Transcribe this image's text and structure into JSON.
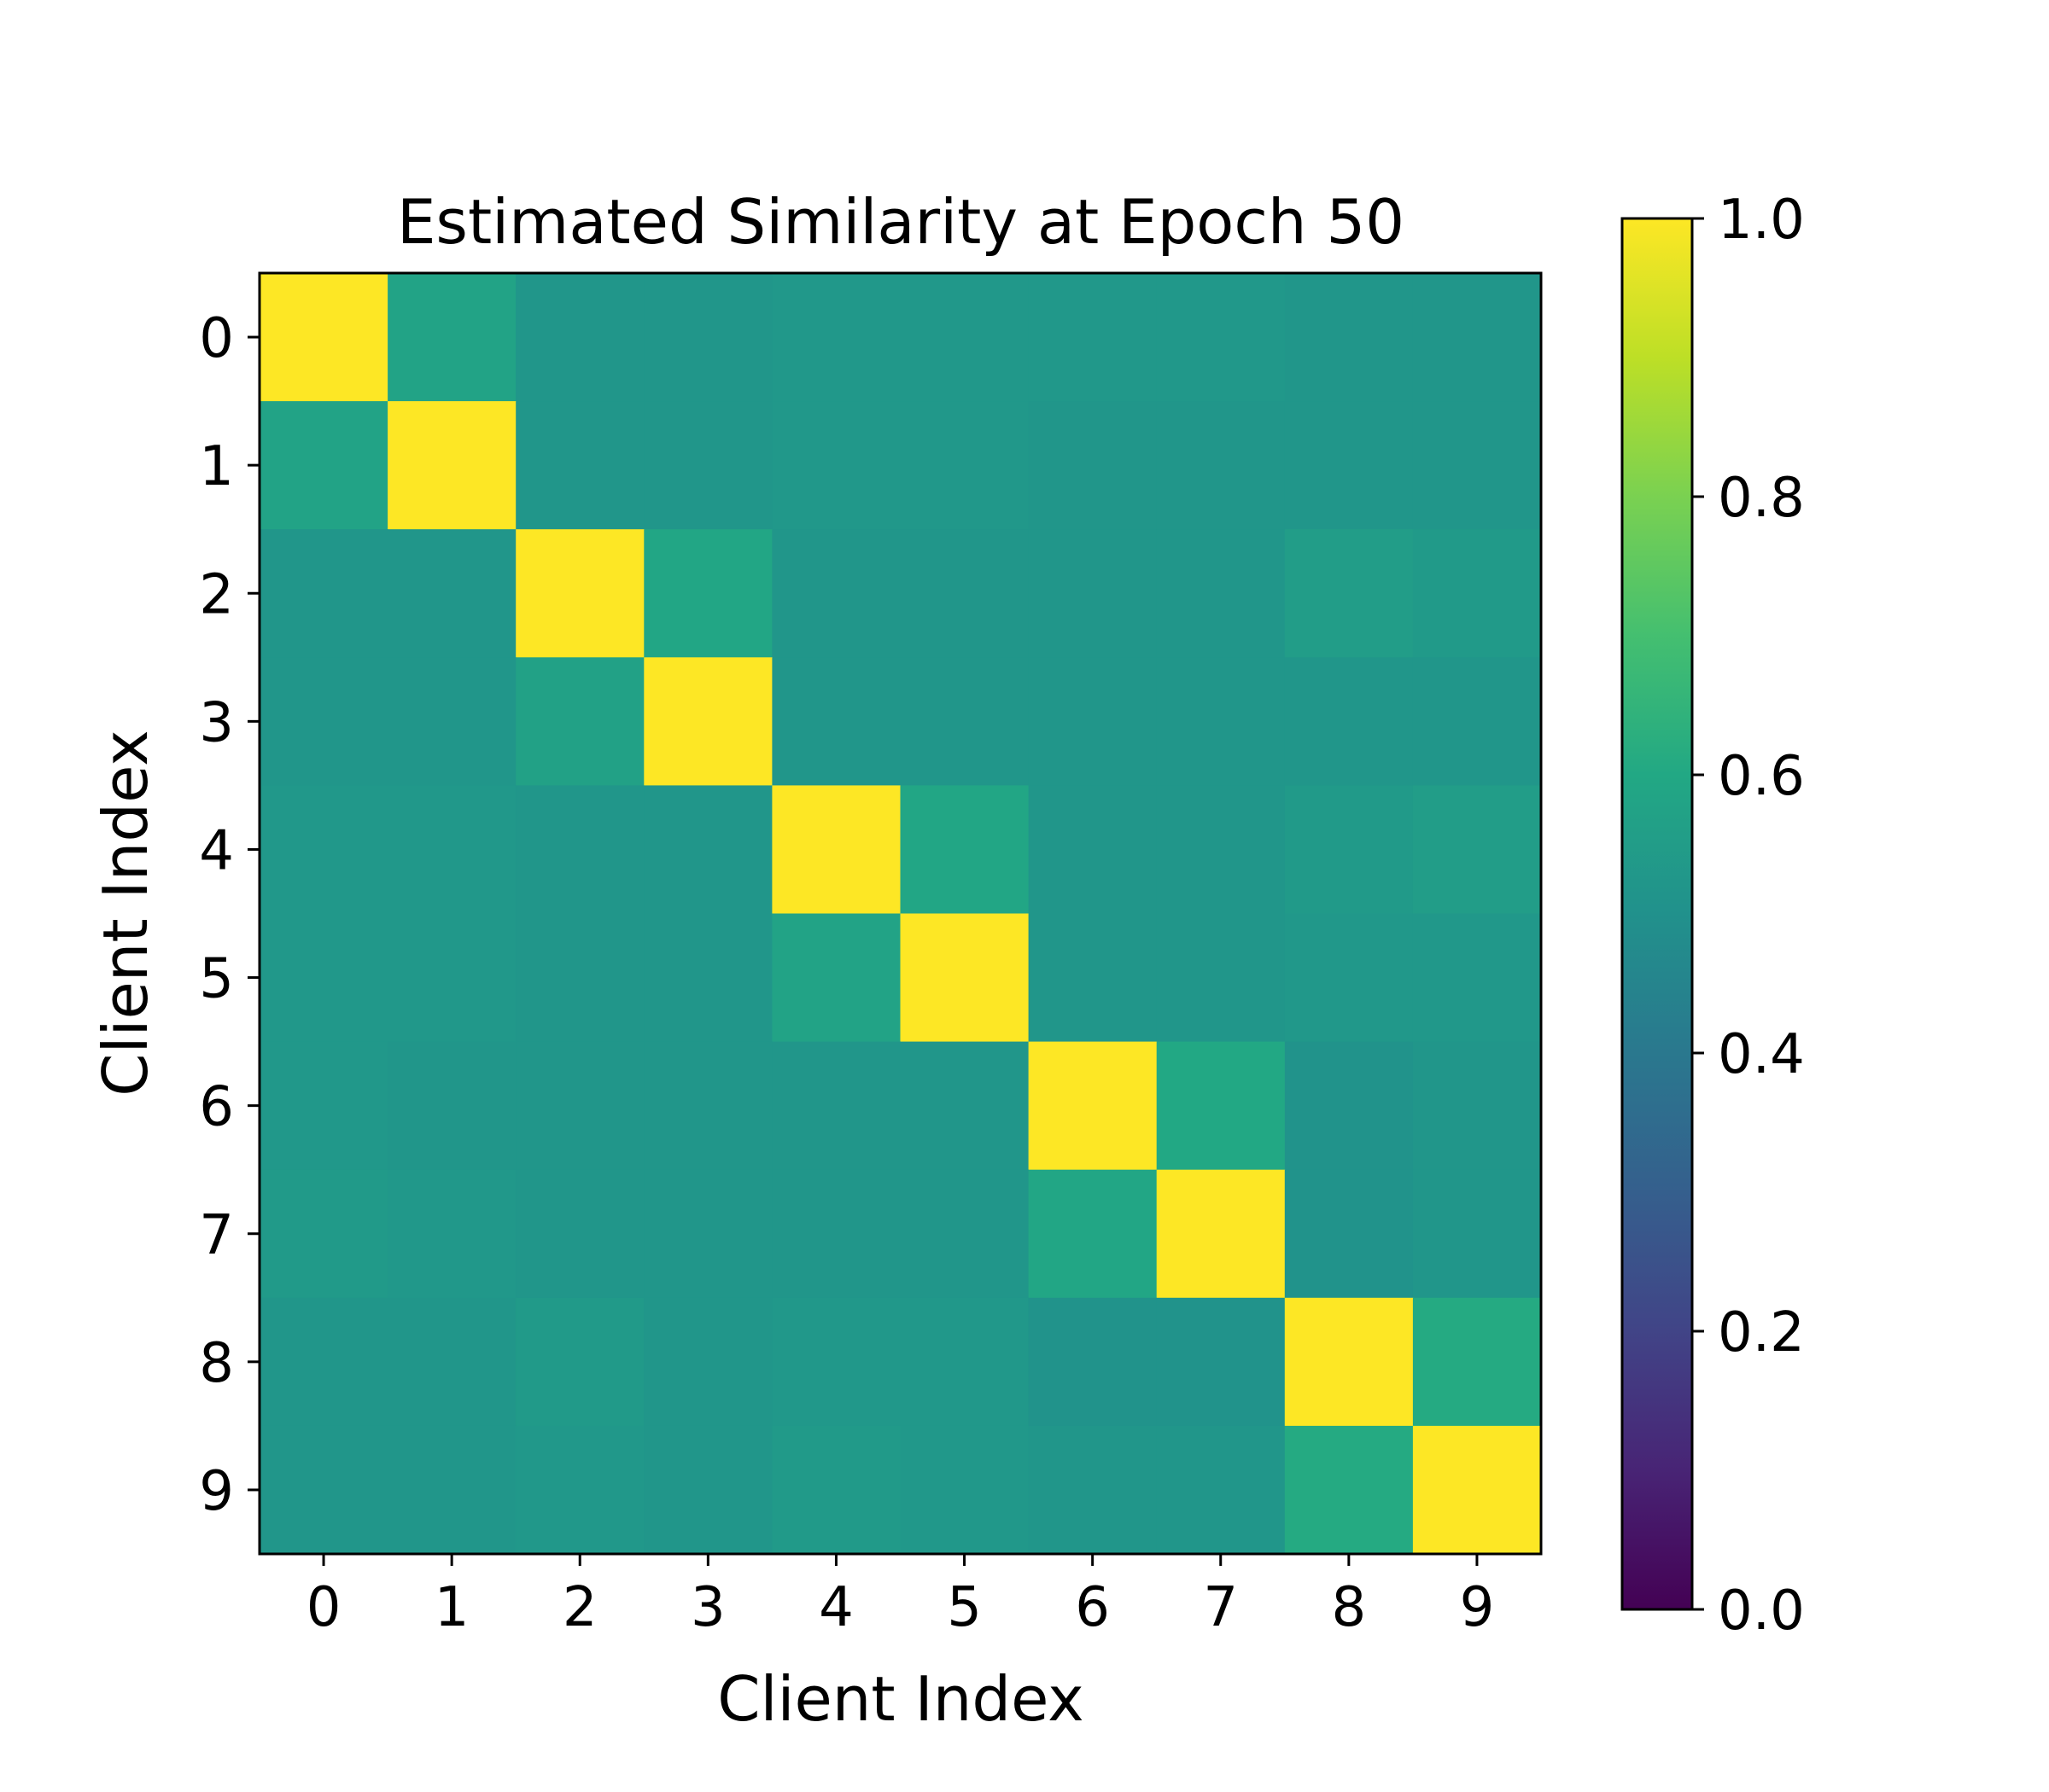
{
  "chart_data": {
    "type": "heatmap",
    "title": "Estimated Similarity at Epoch 50",
    "xlabel": "Client Index",
    "ylabel": "Client Index",
    "x_categories": [
      "0",
      "1",
      "2",
      "3",
      "4",
      "5",
      "6",
      "7",
      "8",
      "9"
    ],
    "y_categories": [
      "0",
      "1",
      "2",
      "3",
      "4",
      "5",
      "6",
      "7",
      "8",
      "9"
    ],
    "colormap": "viridis",
    "colorbar": {
      "range": [
        0.0,
        1.0
      ],
      "ticks": [
        0.0,
        0.2,
        0.4,
        0.6,
        0.8,
        1.0
      ],
      "tick_labels": [
        "0.0",
        "0.2",
        "0.4",
        "0.6",
        "0.8",
        "1.0"
      ]
    },
    "values": [
      [
        1.0,
        0.58,
        0.52,
        0.52,
        0.53,
        0.53,
        0.53,
        0.53,
        0.52,
        0.52
      ],
      [
        0.58,
        1.0,
        0.52,
        0.52,
        0.53,
        0.53,
        0.52,
        0.52,
        0.52,
        0.52
      ],
      [
        0.52,
        0.52,
        1.0,
        0.59,
        0.52,
        0.52,
        0.52,
        0.52,
        0.55,
        0.54
      ],
      [
        0.52,
        0.52,
        0.57,
        1.0,
        0.52,
        0.52,
        0.52,
        0.52,
        0.52,
        0.52
      ],
      [
        0.53,
        0.53,
        0.52,
        0.52,
        1.0,
        0.59,
        0.52,
        0.52,
        0.54,
        0.55
      ],
      [
        0.53,
        0.53,
        0.52,
        0.52,
        0.58,
        1.0,
        0.52,
        0.52,
        0.53,
        0.53
      ],
      [
        0.53,
        0.52,
        0.52,
        0.52,
        0.52,
        0.52,
        1.0,
        0.6,
        0.51,
        0.52
      ],
      [
        0.54,
        0.53,
        0.52,
        0.52,
        0.52,
        0.52,
        0.59,
        1.0,
        0.51,
        0.52
      ],
      [
        0.52,
        0.52,
        0.54,
        0.52,
        0.53,
        0.53,
        0.51,
        0.51,
        1.0,
        0.61
      ],
      [
        0.52,
        0.52,
        0.53,
        0.52,
        0.54,
        0.53,
        0.52,
        0.52,
        0.61,
        1.0
      ]
    ]
  }
}
